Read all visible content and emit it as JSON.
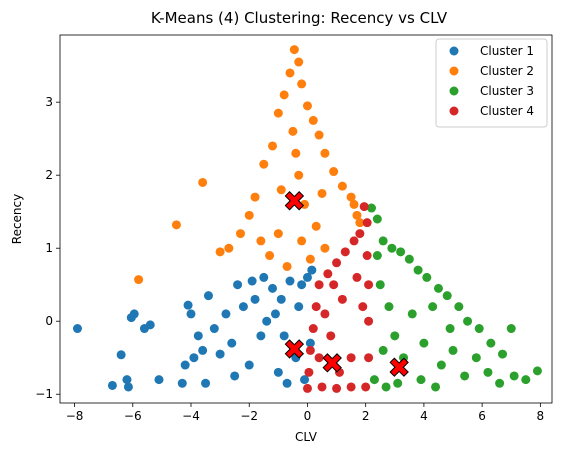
{
  "chart_data": {
    "type": "scatter",
    "title": "K-Means (4) Clustering: Recency vs CLV",
    "xlabel": "CLV",
    "ylabel": "Recency",
    "xlim": [
      -8.5,
      8.4
    ],
    "ylim": [
      -1.12,
      3.92
    ],
    "xticks": [
      -8,
      -6,
      -4,
      -2,
      0,
      2,
      4,
      6,
      8
    ],
    "yticks": [
      -1,
      0,
      1,
      2,
      3
    ],
    "grid": false,
    "legend_position": "top-right",
    "series": [
      {
        "name": "Cluster 1",
        "color": "#1f77b4",
        "points": [
          [
            -7.9,
            -0.1
          ],
          [
            -6.7,
            -0.88
          ],
          [
            -6.4,
            -0.46
          ],
          [
            -6.2,
            -0.8
          ],
          [
            -6.15,
            -0.9
          ],
          [
            -6.05,
            0.05
          ],
          [
            -5.95,
            0.1
          ],
          [
            -5.6,
            -0.1
          ],
          [
            -5.4,
            -0.05
          ],
          [
            -5.1,
            -0.8
          ],
          [
            -4.3,
            -0.85
          ],
          [
            -4.2,
            -0.6
          ],
          [
            -4.1,
            0.22
          ],
          [
            -4.0,
            0.1
          ],
          [
            -3.9,
            -0.5
          ],
          [
            -3.75,
            -0.2
          ],
          [
            -3.6,
            -0.4
          ],
          [
            -3.4,
            0.35
          ],
          [
            -3.2,
            -0.1
          ],
          [
            -3.0,
            -0.45
          ],
          [
            -2.8,
            0.1
          ],
          [
            -2.6,
            -0.3
          ],
          [
            -2.4,
            0.5
          ],
          [
            -2.2,
            0.2
          ],
          [
            -2.0,
            -0.6
          ],
          [
            -1.9,
            0.55
          ],
          [
            -1.8,
            0.3
          ],
          [
            -1.6,
            -0.2
          ],
          [
            -1.5,
            0.6
          ],
          [
            -1.4,
            0.0
          ],
          [
            -1.2,
            0.45
          ],
          [
            -1.0,
            -0.7
          ],
          [
            -0.9,
            0.3
          ],
          [
            -0.8,
            -0.2
          ],
          [
            -0.6,
            0.55
          ],
          [
            -0.4,
            -0.5
          ],
          [
            -0.3,
            0.2
          ],
          [
            -0.2,
            0.5
          ],
          [
            -0.1,
            -0.8
          ],
          [
            0.0,
            0.6
          ],
          [
            0.1,
            -0.3
          ],
          [
            0.15,
            0.7
          ],
          [
            -2.5,
            -0.75
          ],
          [
            -3.5,
            -0.85
          ],
          [
            -1.1,
            0.1
          ],
          [
            -0.7,
            -0.85
          ]
        ],
        "centroid": [
          -0.45,
          -0.38
        ]
      },
      {
        "name": "Cluster 2",
        "color": "#ff7f0e",
        "points": [
          [
            -3.6,
            1.9
          ],
          [
            -4.5,
            1.32
          ],
          [
            -5.8,
            0.57
          ],
          [
            -3.0,
            0.95
          ],
          [
            -2.7,
            1.0
          ],
          [
            -2.3,
            1.2
          ],
          [
            -2.0,
            1.45
          ],
          [
            -1.8,
            1.7
          ],
          [
            -1.5,
            2.15
          ],
          [
            -1.2,
            2.4
          ],
          [
            -1.0,
            2.85
          ],
          [
            -0.8,
            3.1
          ],
          [
            -0.6,
            3.4
          ],
          [
            -0.45,
            3.72
          ],
          [
            -0.3,
            3.55
          ],
          [
            -0.2,
            3.25
          ],
          [
            0.0,
            2.95
          ],
          [
            0.2,
            2.75
          ],
          [
            0.4,
            2.55
          ],
          [
            0.6,
            2.3
          ],
          [
            0.9,
            2.05
          ],
          [
            1.2,
            1.85
          ],
          [
            1.5,
            1.7
          ],
          [
            1.6,
            1.6
          ],
          [
            1.7,
            1.45
          ],
          [
            1.8,
            1.35
          ],
          [
            -0.5,
            2.6
          ],
          [
            -0.3,
            2.0
          ],
          [
            -0.1,
            1.6
          ],
          [
            0.3,
            1.3
          ],
          [
            -1.0,
            1.2
          ],
          [
            -1.3,
            0.9
          ],
          [
            -0.7,
            0.75
          ],
          [
            0.1,
            0.85
          ],
          [
            -0.2,
            1.1
          ],
          [
            -0.9,
            1.8
          ],
          [
            0.6,
            1.0
          ],
          [
            -1.6,
            1.1
          ],
          [
            -0.4,
            2.3
          ],
          [
            0.5,
            1.75
          ]
        ],
        "centroid": [
          -0.45,
          1.65
        ]
      },
      {
        "name": "Cluster 3",
        "color": "#2ca02c",
        "points": [
          [
            2.2,
            1.55
          ],
          [
            2.4,
            1.4
          ],
          [
            2.6,
            1.1
          ],
          [
            2.9,
            1.0
          ],
          [
            3.2,
            0.95
          ],
          [
            3.5,
            0.85
          ],
          [
            3.8,
            0.7
          ],
          [
            4.1,
            0.6
          ],
          [
            4.5,
            0.45
          ],
          [
            4.8,
            0.35
          ],
          [
            5.2,
            0.2
          ],
          [
            5.5,
            0.0
          ],
          [
            5.9,
            -0.1
          ],
          [
            6.3,
            -0.3
          ],
          [
            6.7,
            -0.45
          ],
          [
            7.1,
            -0.75
          ],
          [
            7.5,
            -0.8
          ],
          [
            7.9,
            -0.68
          ],
          [
            7.0,
            -0.1
          ],
          [
            2.5,
            0.5
          ],
          [
            2.8,
            0.2
          ],
          [
            3.0,
            -0.2
          ],
          [
            3.3,
            -0.5
          ],
          [
            3.6,
            0.1
          ],
          [
            4.0,
            -0.3
          ],
          [
            4.3,
            0.2
          ],
          [
            4.6,
            -0.6
          ],
          [
            5.0,
            -0.4
          ],
          [
            5.4,
            -0.75
          ],
          [
            5.8,
            -0.5
          ],
          [
            6.2,
            -0.7
          ],
          [
            2.3,
            -0.8
          ],
          [
            2.7,
            -0.9
          ],
          [
            3.1,
            -0.85
          ],
          [
            3.9,
            -0.8
          ],
          [
            4.4,
            -0.9
          ],
          [
            6.6,
            -0.85
          ],
          [
            2.4,
            0.9
          ],
          [
            2.6,
            -0.4
          ],
          [
            4.9,
            -0.1
          ]
        ],
        "centroid": [
          3.15,
          -0.63
        ]
      },
      {
        "name": "Cluster 4",
        "color": "#d62728",
        "points": [
          [
            1.95,
            1.57
          ],
          [
            2.05,
            1.35
          ],
          [
            1.8,
            1.2
          ],
          [
            1.6,
            1.1
          ],
          [
            1.3,
            0.95
          ],
          [
            1.0,
            0.8
          ],
          [
            0.7,
            0.65
          ],
          [
            0.4,
            0.5
          ],
          [
            0.3,
            0.2
          ],
          [
            0.2,
            -0.1
          ],
          [
            0.1,
            -0.4
          ],
          [
            0.05,
            -0.7
          ],
          [
            0.0,
            -0.92
          ],
          [
            0.5,
            -0.9
          ],
          [
            1.0,
            -0.92
          ],
          [
            1.5,
            -0.9
          ],
          [
            2.0,
            -0.9
          ],
          [
            2.1,
            -0.5
          ],
          [
            2.1,
            0.0
          ],
          [
            2.1,
            0.5
          ],
          [
            2.05,
            0.9
          ],
          [
            1.2,
            0.3
          ],
          [
            0.8,
            -0.2
          ],
          [
            1.5,
            -0.5
          ],
          [
            0.6,
            0.1
          ],
          [
            1.7,
            0.6
          ],
          [
            1.1,
            -0.7
          ],
          [
            0.4,
            -0.5
          ],
          [
            1.9,
            0.2
          ],
          [
            0.9,
            0.5
          ]
        ],
        "centroid": [
          0.85,
          -0.57
        ]
      }
    ]
  }
}
